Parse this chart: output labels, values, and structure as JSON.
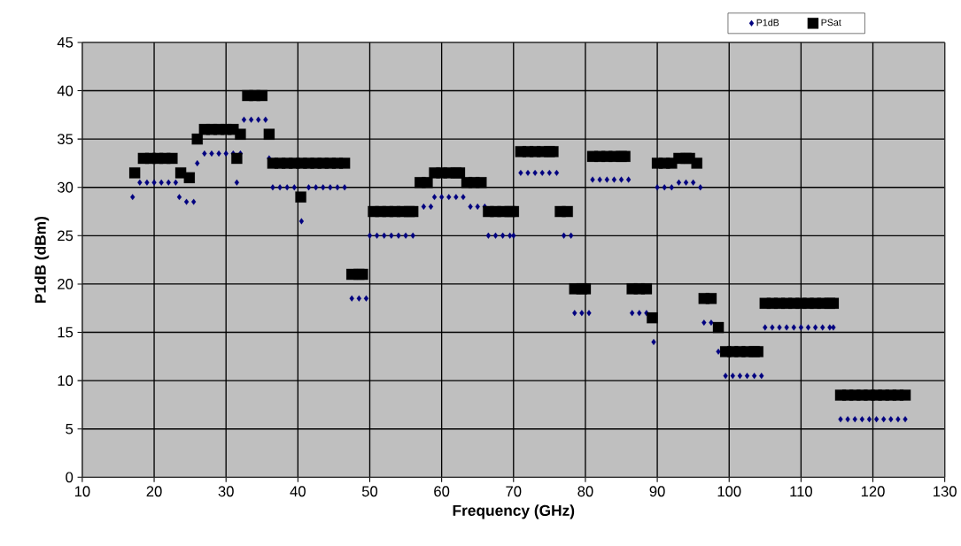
{
  "chart_data": {
    "type": "scatter",
    "xlabel": "Frequency (GHz)",
    "ylabel": "P1dB (dBm)",
    "xlim": [
      10,
      130
    ],
    "xticks": [
      10,
      20,
      30,
      40,
      50,
      60,
      70,
      80,
      90,
      100,
      110,
      120,
      130
    ],
    "ylim": [
      0,
      45
    ],
    "yticks": [
      0,
      5,
      10,
      15,
      20,
      25,
      30,
      35,
      40,
      45
    ],
    "grid": true,
    "legend": "top right",
    "series": [
      {
        "name": "P1dB",
        "color": "#000080",
        "marker": "diamond",
        "x": [
          17,
          18,
          19,
          20,
          21,
          22,
          23,
          23.5,
          24.5,
          25.5,
          26,
          27,
          28,
          29,
          30,
          31,
          31.5,
          32,
          32.5,
          33.5,
          34.5,
          35.5,
          36,
          36.5,
          37.5,
          38.5,
          39.5,
          40.5,
          41.5,
          42.5,
          43.5,
          44.5,
          45.5,
          46.5,
          47.5,
          48.5,
          49.5,
          50,
          51,
          52,
          53,
          54,
          55,
          56,
          57.5,
          58.5,
          59,
          60,
          61,
          62,
          63,
          64,
          65,
          66,
          66.5,
          67.5,
          68.5,
          69.5,
          70,
          71,
          72,
          73,
          74,
          75,
          76,
          77,
          78,
          78.5,
          79.5,
          80.5,
          81,
          82,
          83,
          84,
          85,
          86,
          86.5,
          87.5,
          88.5,
          89.5,
          90,
          91,
          92,
          93,
          94,
          95,
          96,
          96.5,
          97.5,
          98.5,
          99.5,
          100.5,
          101.5,
          102.5,
          103.5,
          104.5,
          105,
          106,
          107,
          108,
          109,
          110,
          111,
          112,
          113,
          114,
          114.5,
          115.5,
          116.5,
          117.5,
          118.5,
          119.5,
          120.5,
          121.5,
          122.5,
          123.5,
          124.5
        ],
        "values": [
          29,
          30.5,
          30.5,
          30.5,
          30.5,
          30.5,
          30.5,
          29,
          28.5,
          28.5,
          32.5,
          33.5,
          33.5,
          33.5,
          33.5,
          33.5,
          30.5,
          33.5,
          37,
          37,
          37,
          37,
          33,
          30,
          30,
          30,
          30,
          26.5,
          30,
          30,
          30,
          30,
          30,
          30,
          18.5,
          18.5,
          18.5,
          25,
          25,
          25,
          25,
          25,
          25,
          25,
          28,
          28,
          29,
          29,
          29,
          29,
          29,
          28,
          28,
          28,
          25,
          25,
          25,
          25,
          25,
          31.5,
          31.5,
          31.5,
          31.5,
          31.5,
          31.5,
          25,
          25,
          17,
          17,
          17,
          30.8,
          30.8,
          30.8,
          30.8,
          30.8,
          30.8,
          17,
          17,
          17,
          14,
          30,
          30,
          30,
          30.5,
          30.5,
          30.5,
          30,
          16,
          16,
          13,
          10.5,
          10.5,
          10.5,
          10.5,
          10.5,
          10.5,
          15.5,
          15.5,
          15.5,
          15.5,
          15.5,
          15.5,
          15.5,
          15.5,
          15.5,
          15.5,
          15.5,
          6,
          6,
          6,
          6,
          6,
          6,
          6,
          6,
          6,
          6
        ]
      },
      {
        "name": "PSat",
        "color": "#000000",
        "marker": "square",
        "x": [
          17.3,
          18.5,
          19.5,
          20.5,
          21.5,
          22.5,
          23.7,
          24.9,
          26,
          27,
          28,
          29,
          30,
          31,
          31.5,
          32,
          33,
          34,
          35,
          36,
          36.5,
          37.5,
          38.5,
          39.5,
          40.5,
          41.5,
          42.5,
          43.5,
          44.5,
          45.5,
          46.5,
          40.4,
          47.5,
          48.5,
          49,
          50.5,
          51.5,
          52.5,
          53.5,
          54.5,
          55.5,
          56,
          57,
          58,
          59,
          60,
          61,
          62,
          62.5,
          63.5,
          64.5,
          65.5,
          66.5,
          67.5,
          68.5,
          69.5,
          70,
          71,
          72,
          73,
          74,
          75,
          75.5,
          76.5,
          77.5,
          78.5,
          79.5,
          80,
          81,
          82,
          83,
          84,
          85,
          85.5,
          86.5,
          87.5,
          88.5,
          89.3,
          90,
          91,
          92,
          93,
          94,
          94.5,
          95.5,
          96.5,
          97.5,
          98.5,
          99.5,
          100.5,
          101.5,
          102.5,
          103.5,
          104,
          105,
          106,
          107,
          108,
          109,
          110,
          111,
          112,
          113,
          114,
          114.5,
          115.5,
          116.5,
          117.5,
          118.5,
          119.5,
          120.5,
          121.5,
          122.5,
          123.5,
          124.5
        ],
        "values": [
          31.5,
          33,
          33,
          33,
          33,
          33,
          31.5,
          31,
          35,
          36,
          36,
          36,
          36,
          36,
          33,
          35.5,
          39.5,
          39.5,
          39.5,
          35.5,
          32.5,
          32.5,
          32.5,
          32.5,
          32.5,
          32.5,
          32.5,
          32.5,
          32.5,
          32.5,
          32.5,
          29,
          21,
          21,
          21,
          27.5,
          27.5,
          27.5,
          27.5,
          27.5,
          27.5,
          27.5,
          30.5,
          30.5,
          31.5,
          31.5,
          31.5,
          31.5,
          31.5,
          30.5,
          30.5,
          30.5,
          27.5,
          27.5,
          27.5,
          27.5,
          27.5,
          33.7,
          33.7,
          33.7,
          33.7,
          33.7,
          33.7,
          27.5,
          27.5,
          19.5,
          19.5,
          19.5,
          33.2,
          33.2,
          33.2,
          33.2,
          33.2,
          33.2,
          19.5,
          19.5,
          19.5,
          16.5,
          32.5,
          32.5,
          32.5,
          33,
          33,
          33,
          32.5,
          18.5,
          18.5,
          15.5,
          13,
          13,
          13,
          13,
          13,
          13,
          18,
          18,
          18,
          18,
          18,
          18,
          18,
          18,
          18,
          18,
          18,
          8.5,
          8.5,
          8.5,
          8.5,
          8.5,
          8.5,
          8.5,
          8.5,
          8.5,
          8.5
        ]
      }
    ]
  }
}
